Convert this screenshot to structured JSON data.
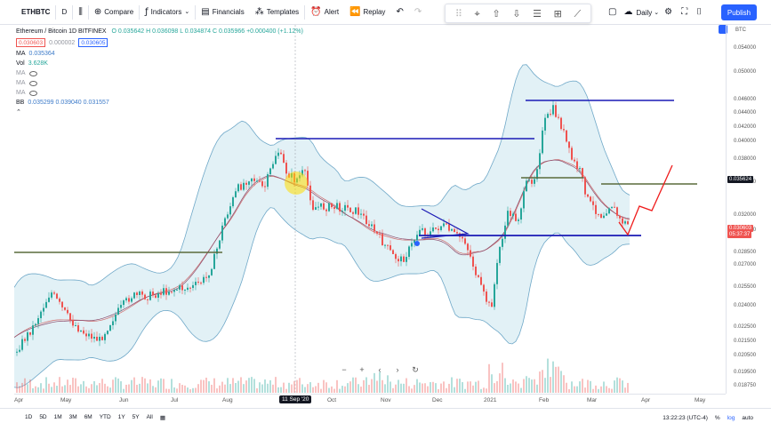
{
  "toolbar": {
    "symbol": "ETHBTC",
    "interval": "D",
    "compare": "Compare",
    "indicators": "Indicators",
    "financials": "Financials",
    "templates": "Templates",
    "alert": "Alert",
    "replay": "Replay",
    "timeframe": "Daily",
    "publish": "Publish"
  },
  "legend": {
    "title": "Ethereum / Bitcoin  1D  BITFINEX",
    "ohlc": "O 0.035642  H 0.036098  L 0.034874  C 0.035966  +0.000400 (+1.12%)",
    "bid": "0.030603",
    "spread": "0.000002",
    "ask": "0.030605",
    "ma_label": "MA",
    "ma_value": "0.035364",
    "vol_label": "Vol",
    "vol_value": "3.628K",
    "ma2_label": "MA",
    "ma3_label": "MA",
    "bb_label": "BB",
    "bb_values": "0.035299  0.039040  0.031557"
  },
  "yaxis": {
    "currency": "BTC",
    "labels": [
      "0.054000",
      "0.050000",
      "0.046000",
      "0.044000",
      "0.042000",
      "0.040000",
      "0.038000",
      "0.034000",
      "0.032000",
      "0.030000",
      "0.028500",
      "0.027000",
      "0.025500",
      "0.024000",
      "0.022500",
      "0.021500",
      "0.020500",
      "0.019500",
      "0.018750"
    ],
    "tag_dark": "0.035624",
    "tag_red": "0.030603",
    "tag_red_time": "05:37:37"
  },
  "xaxis": {
    "labels": [
      "Apr",
      "May",
      "Jun",
      "Jul",
      "Aug",
      "Oct",
      "Nov",
      "Dec",
      "2021",
      "Feb",
      "Mar",
      "Apr",
      "May"
    ],
    "cursor_date": "11 Sep '20"
  },
  "bottom": {
    "ranges": [
      "1D",
      "5D",
      "1M",
      "3M",
      "6M",
      "YTD",
      "1Y",
      "5Y",
      "All"
    ],
    "time": "13:22:23 (UTC-4)",
    "percent": "%",
    "log": "log",
    "auto": "auto"
  },
  "colors": {
    "up": "#26a69a",
    "down": "#ef5350",
    "accent": "#2962ff",
    "bb_fill": "#cfe8f0",
    "bb_line": "#6fa8c8",
    "level_blue": "#1a1ab5",
    "level_olive": "#5a6b3c",
    "projection": "#ef1c1c"
  }
}
